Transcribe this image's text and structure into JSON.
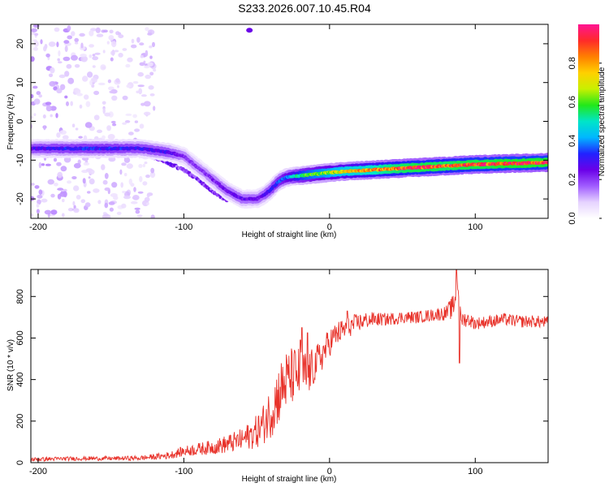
{
  "title": "S233.2026.007.10.45.R04",
  "colors": {
    "snr_line": "#e8322a",
    "axis": "#000000",
    "background": "#ffffff",
    "colormap": [
      "#ffffff",
      "#e6d3ff",
      "#a05cff",
      "#6a00e8",
      "#2222ff",
      "#00b7ff",
      "#00e5c8",
      "#22e81a",
      "#c8f000",
      "#ffd000",
      "#ff8000",
      "#ff2a2a",
      "#ff1493"
    ]
  },
  "chart_data": [
    {
      "id": "spectrogram",
      "type": "heatmap",
      "xlabel": "Height of straight line (km)",
      "ylabel": "Frequency (Hz)",
      "xlim": [
        -205,
        150
      ],
      "ylim": [
        -25,
        25
      ],
      "xticks": [
        -200,
        -100,
        0,
        100
      ],
      "xtick_labels": [
        "-200",
        "-100",
        "0",
        "100"
      ],
      "yticks": [
        -20,
        -10,
        0,
        10,
        20
      ],
      "ytick_labels": [
        "-20",
        "-10",
        "0",
        "10",
        "20"
      ],
      "colorbar": {
        "label": "Normalized spectral amplitude",
        "range": [
          0.0,
          1.0
        ],
        "ticks": [
          0.0,
          0.2,
          0.4,
          0.6,
          0.8
        ],
        "tick_labels": [
          "0.0",
          "0.2",
          "0.4",
          "0.6",
          "0.8"
        ]
      },
      "ridge": {
        "x": [
          -205,
          -190,
          -170,
          -150,
          -130,
          -110,
          -100,
          -90,
          -80,
          -70,
          -60,
          -50,
          -45,
          -40,
          -35,
          -30,
          -25,
          -20,
          -10,
          0,
          10,
          20,
          30,
          40,
          50,
          60,
          70,
          80,
          90,
          100,
          110,
          120,
          130,
          140,
          150
        ],
        "freq": [
          -7,
          -7,
          -7,
          -7,
          -7,
          -8,
          -9,
          -12,
          -15,
          -18,
          -20,
          -20,
          -19,
          -17.5,
          -15.5,
          -14.5,
          -14.2,
          -14,
          -13.6,
          -13.2,
          -12.9,
          -12.7,
          -12.5,
          -12.3,
          -12.1,
          -11.9,
          -11.7,
          -11.5,
          -11.3,
          -11.1,
          -11,
          -10.9,
          -10.8,
          -10.7,
          -10.6
        ],
        "amplitude": [
          0.28,
          0.3,
          0.32,
          0.32,
          0.3,
          0.28,
          0.22,
          0.2,
          0.22,
          0.24,
          0.25,
          0.25,
          0.26,
          0.3,
          0.34,
          0.38,
          0.45,
          0.55,
          0.62,
          0.66,
          0.72,
          0.76,
          0.8,
          0.85,
          0.88,
          0.9,
          0.9,
          0.88,
          0.9,
          0.9,
          0.9,
          0.92,
          0.92,
          0.92,
          0.92
        ]
      },
      "secondary_ridge": {
        "x": [
          -130,
          -115,
          -100,
          -90,
          -80,
          -70
        ],
        "freq": [
          -8,
          -10,
          -12.5,
          -15,
          -18,
          -20.5
        ],
        "amplitude": [
          0.22,
          0.22,
          0.2,
          0.2,
          0.2,
          0.18
        ]
      },
      "noise_region": {
        "x_range": [
          -205,
          -120
        ],
        "freq_range": [
          -25,
          25
        ],
        "density": 0.6,
        "amplitude_max": 0.12
      }
    },
    {
      "id": "snr",
      "type": "line",
      "xlabel": "Height of straight line (km)",
      "ylabel": "SNR (10 * v/v)",
      "xlim": [
        -205,
        150
      ],
      "ylim": [
        0,
        930
      ],
      "xticks": [
        -200,
        -100,
        0,
        100
      ],
      "xtick_labels": [
        "-200",
        "-100",
        "0",
        "100"
      ],
      "yticks": [
        0,
        200,
        400,
        600,
        800
      ],
      "ytick_labels": [
        "0",
        "200",
        "400",
        "600",
        "800"
      ],
      "series": [
        {
          "name": "SNR",
          "x": [
            -205,
            -190,
            -170,
            -150,
            -130,
            -120,
            -110,
            -100,
            -90,
            -80,
            -70,
            -60,
            -50,
            -45,
            -40,
            -35,
            -30,
            -25,
            -20,
            -15,
            -10,
            -5,
            0,
            5,
            10,
            15,
            20,
            25,
            30,
            40,
            50,
            60,
            70,
            80,
            85,
            88,
            90,
            95,
            100,
            110,
            120,
            130,
            140,
            150
          ],
          "values": [
            15,
            18,
            20,
            20,
            22,
            28,
            35,
            55,
            65,
            75,
            90,
            110,
            150,
            190,
            250,
            330,
            390,
            420,
            430,
            420,
            470,
            520,
            580,
            620,
            640,
            660,
            675,
            685,
            690,
            690,
            700,
            700,
            710,
            720,
            750,
            880,
            690,
            690,
            670,
            680,
            690,
            680,
            680,
            675
          ],
          "noise": [
            10,
            10,
            10,
            10,
            12,
            14,
            18,
            25,
            30,
            35,
            45,
            55,
            80,
            100,
            130,
            150,
            150,
            140,
            130,
            110,
            90,
            80,
            70,
            60,
            55,
            50,
            45,
            40,
            35,
            30,
            30,
            30,
            30,
            35,
            60,
            80,
            40,
            35,
            30,
            30,
            30,
            30,
            30,
            30
          ]
        }
      ],
      "peaks": [
        {
          "x": -19,
          "value": 650
        },
        {
          "x": -20,
          "value": 590
        },
        {
          "x": -15,
          "value": 625
        },
        {
          "x": 12,
          "value": 730
        },
        {
          "x": 87,
          "value": 930
        },
        {
          "x": 89,
          "value": 480
        }
      ]
    }
  ]
}
